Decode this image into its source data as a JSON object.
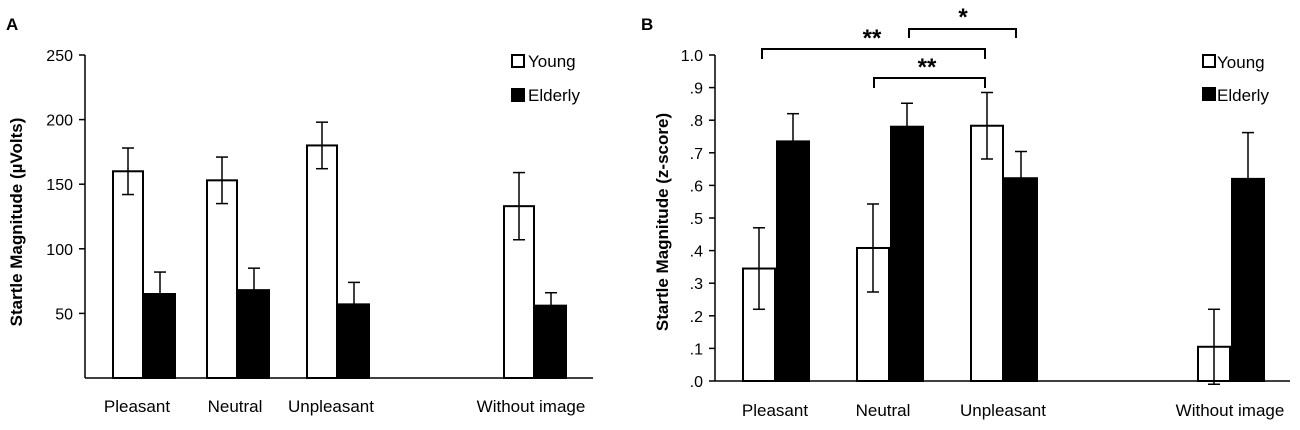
{
  "panels": [
    {
      "letter": "A",
      "ylabel": "Startle Magnitude (µVolts)",
      "yticks": [
        "50",
        "100",
        "150",
        "200",
        "250"
      ],
      "legend": [
        "Young",
        "Elderly"
      ]
    },
    {
      "letter": "B",
      "ylabel": "Startle Magnitude (z-score)",
      "yticks": [
        ".0",
        ".1",
        ".2",
        ".3",
        ".4",
        ".5",
        ".6",
        ".7",
        ".8",
        ".9",
        "1.0"
      ],
      "legend": [
        "Young",
        "Elderly"
      ],
      "significance": [
        "**",
        "**",
        "*"
      ]
    }
  ],
  "chart_data": [
    {
      "type": "bar",
      "panel": "A",
      "categories": [
        "Pleasant",
        "Neutral",
        "Unpleasant",
        "Without image"
      ],
      "series": [
        {
          "name": "Young",
          "fill": "#ffffff",
          "values": [
            160,
            153,
            180,
            133
          ],
          "errors": [
            18,
            18,
            18,
            26
          ]
        },
        {
          "name": "Elderly",
          "fill": "#000000",
          "values": [
            65,
            68,
            57,
            56
          ],
          "errors": [
            17,
            17,
            17,
            10
          ]
        }
      ],
      "ylabel": "Startle Magnitude (µVolts)",
      "ylim": [
        0,
        250
      ],
      "yticks": [
        50,
        100,
        150,
        200,
        250
      ],
      "legend_position": "top-right",
      "grid": false
    },
    {
      "type": "bar",
      "panel": "B",
      "categories": [
        "Pleasant",
        "Neutral",
        "Unpleasant",
        "Without image"
      ],
      "series": [
        {
          "name": "Young",
          "fill": "#ffffff",
          "values": [
            0.345,
            0.408,
            0.783,
            0.105
          ],
          "errors": [
            0.125,
            0.135,
            0.102,
            0.115
          ]
        },
        {
          "name": "Elderly",
          "fill": "#000000",
          "values": [
            0.735,
            0.78,
            0.622,
            0.62
          ],
          "errors": [
            0.085,
            0.072,
            0.082,
            0.142
          ]
        }
      ],
      "ylabel": "Startle Magnitude (z-score)",
      "ylim": [
        0,
        1.0
      ],
      "yticks": [
        0,
        0.1,
        0.2,
        0.3,
        0.4,
        0.5,
        0.6,
        0.7,
        0.8,
        0.9,
        1.0
      ],
      "legend_position": "top-right",
      "grid": false,
      "annotations": [
        {
          "label": "**",
          "from": "Pleasant",
          "to": "Unpleasant"
        },
        {
          "label": "**",
          "from": "Neutral",
          "to": "Unpleasant"
        },
        {
          "label": "*",
          "from": "Neutral",
          "to": "Unpleasant Elderly"
        }
      ]
    }
  ]
}
